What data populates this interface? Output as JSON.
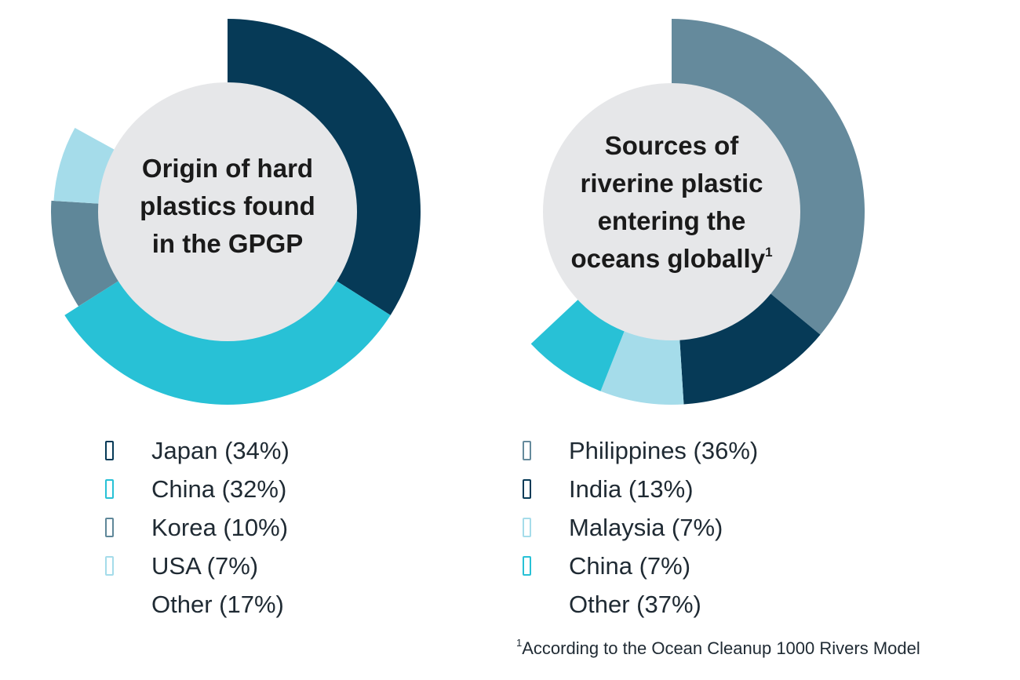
{
  "chart_data": [
    {
      "type": "pie",
      "title": "Origin of hard plastics found in the GPGP",
      "title_lines": [
        "Origin of hard",
        "plastics found",
        "in the GPGP"
      ],
      "series": [
        {
          "name": "Japan",
          "value": 34,
          "color": "#063a57",
          "label": "Japan (34%)"
        },
        {
          "name": "China",
          "value": 32,
          "color": "#28c1d6",
          "label": "China (32%)"
        },
        {
          "name": "Korea",
          "value": 10,
          "color": "#5f8799",
          "label": "Korea (10%)"
        },
        {
          "name": "USA",
          "value": 7,
          "color": "#a5dcea",
          "label": "USA (7%)"
        },
        {
          "name": "Other",
          "value": 17,
          "color": null,
          "label": "Other (17%)"
        }
      ],
      "center_color": "#e6e7e9"
    },
    {
      "type": "pie",
      "title": "Sources of riverine plastic entering the oceans globally",
      "title_lines": [
        "Sources of",
        "riverine plastic",
        "entering the",
        "oceans globally"
      ],
      "title_footnote_mark": "1",
      "series": [
        {
          "name": "Philippines",
          "value": 36,
          "color": "#658a9c",
          "label": "Philippines (36%)"
        },
        {
          "name": "India",
          "value": 13,
          "color": "#063a57",
          "label": "India (13%)"
        },
        {
          "name": "Malaysia",
          "value": 7,
          "color": "#a5dcea",
          "label": "Malaysia (7%)"
        },
        {
          "name": "China",
          "value": 7,
          "color": "#28c1d6",
          "label": "China (7%)"
        },
        {
          "name": "Other",
          "value": 37,
          "color": null,
          "label": "Other (37%)"
        }
      ],
      "center_color": "#e6e7e9"
    }
  ],
  "footnote": {
    "mark": "1",
    "text": "According to the Ocean Cleanup 1000 Rivers Model"
  }
}
